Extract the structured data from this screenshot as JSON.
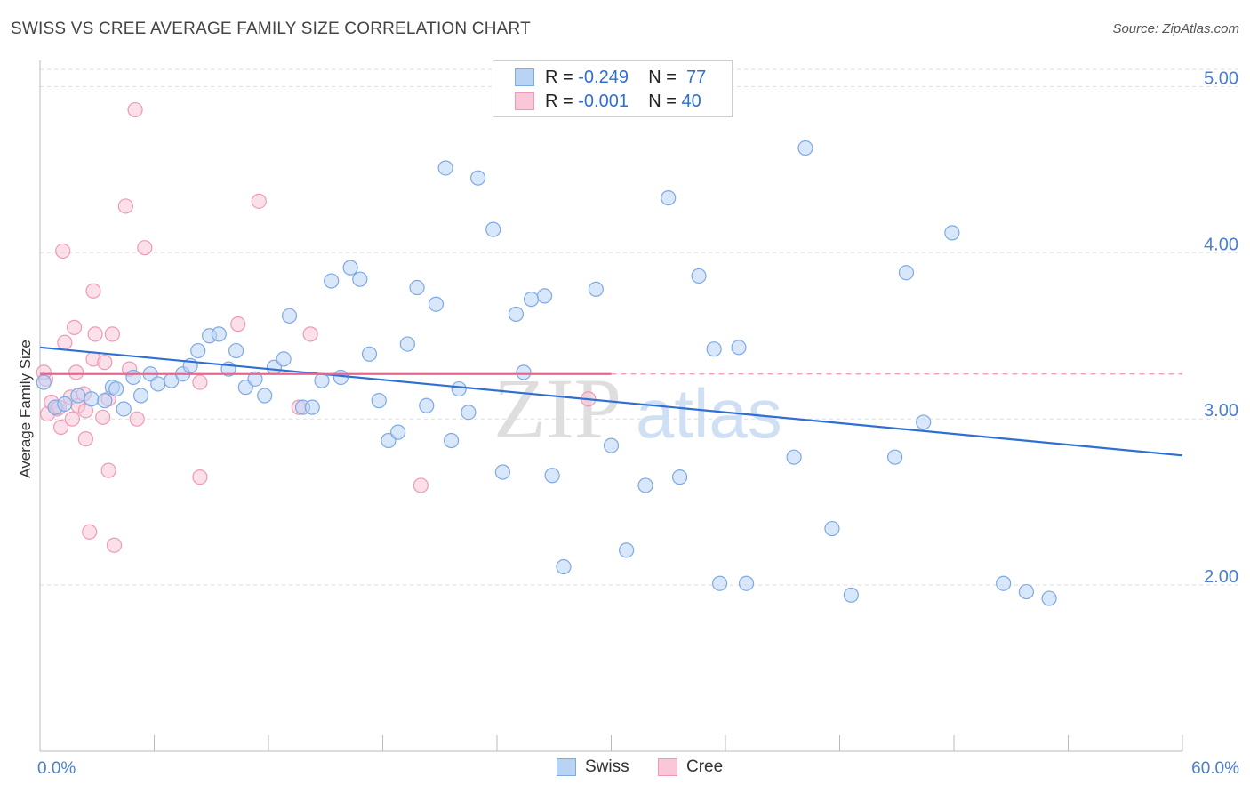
{
  "title": "SWISS VS CREE AVERAGE FAMILY SIZE CORRELATION CHART",
  "source": "Source: ZipAtlas.com",
  "legend": {
    "rows": [
      {
        "r_label": "R =",
        "r_value": "-0.249",
        "n_label": "N =",
        "n_value": "77"
      },
      {
        "r_label": "R =",
        "r_value": "-0.001",
        "n_label": "N =",
        "n_value": "40"
      }
    ]
  },
  "bottom_legend": {
    "swiss": "Swiss",
    "cree": "Cree"
  },
  "colors": {
    "swiss_fill": "#b9d3f5",
    "swiss_stroke": "#7ea9e4",
    "swiss_line": "#2f6fd4",
    "cree_fill": "#f9c7d7",
    "cree_stroke": "#ee9ab6",
    "cree_line": "#e8678f",
    "axis_text": "#4a7fd0",
    "grid": "#dddddd"
  },
  "chart_data": {
    "type": "scatter",
    "ylabel": "Average Family Size",
    "xlim": [
      0,
      60
    ],
    "ylim": [
      1.0,
      5.2
    ],
    "x_tick_labels": [
      "0.0%",
      "60.0%"
    ],
    "y_ticks": [
      2.0,
      3.0,
      4.0,
      5.0
    ],
    "y_tick_labels": [
      "2.00",
      "3.00",
      "4.00",
      "5.00"
    ],
    "grid": true,
    "legend_placement": "top-center",
    "series": [
      {
        "name": "Swiss",
        "trend": {
          "x": [
            0,
            60
          ],
          "y": [
            3.43,
            2.78
          ]
        },
        "points": [
          [
            0.2,
            3.22
          ],
          [
            0.8,
            3.07
          ],
          [
            1.3,
            3.09
          ],
          [
            2.0,
            3.14
          ],
          [
            2.7,
            3.12
          ],
          [
            3.4,
            3.11
          ],
          [
            3.8,
            3.19
          ],
          [
            4.4,
            3.06
          ],
          [
            4.9,
            3.25
          ],
          [
            5.3,
            3.14
          ],
          [
            5.8,
            3.27
          ],
          [
            6.2,
            3.21
          ],
          [
            6.9,
            3.23
          ],
          [
            7.5,
            3.27
          ],
          [
            7.9,
            3.32
          ],
          [
            8.3,
            3.41
          ],
          [
            8.9,
            3.5
          ],
          [
            9.4,
            3.51
          ],
          [
            9.9,
            3.3
          ],
          [
            10.3,
            3.41
          ],
          [
            10.8,
            3.19
          ],
          [
            11.3,
            3.24
          ],
          [
            11.8,
            3.14
          ],
          [
            12.3,
            3.31
          ],
          [
            12.8,
            3.36
          ],
          [
            13.1,
            3.62
          ],
          [
            13.8,
            3.07
          ],
          [
            14.3,
            3.07
          ],
          [
            14.8,
            3.23
          ],
          [
            15.3,
            3.83
          ],
          [
            15.8,
            3.25
          ],
          [
            16.3,
            3.91
          ],
          [
            16.8,
            3.84
          ],
          [
            17.3,
            3.39
          ],
          [
            17.8,
            3.11
          ],
          [
            18.3,
            2.87
          ],
          [
            18.8,
            2.92
          ],
          [
            19.3,
            3.45
          ],
          [
            19.8,
            3.79
          ],
          [
            20.3,
            3.08
          ],
          [
            20.8,
            3.69
          ],
          [
            21.3,
            4.51
          ],
          [
            21.6,
            2.87
          ],
          [
            22.0,
            3.18
          ],
          [
            22.5,
            3.04
          ],
          [
            23.0,
            4.45
          ],
          [
            23.8,
            4.14
          ],
          [
            24.3,
            2.68
          ],
          [
            25.0,
            3.63
          ],
          [
            25.4,
            3.28
          ],
          [
            25.8,
            3.72
          ],
          [
            26.5,
            3.74
          ],
          [
            26.9,
            2.66
          ],
          [
            27.5,
            2.11
          ],
          [
            29.2,
            3.78
          ],
          [
            30.0,
            2.84
          ],
          [
            30.8,
            2.21
          ],
          [
            31.8,
            2.6
          ],
          [
            33.0,
            4.33
          ],
          [
            33.6,
            2.65
          ],
          [
            34.6,
            3.86
          ],
          [
            35.4,
            3.42
          ],
          [
            35.7,
            2.01
          ],
          [
            36.7,
            3.43
          ],
          [
            37.1,
            2.01
          ],
          [
            39.6,
            2.77
          ],
          [
            40.2,
            4.63
          ],
          [
            41.6,
            2.34
          ],
          [
            42.6,
            1.94
          ],
          [
            44.9,
            2.77
          ],
          [
            45.5,
            3.88
          ],
          [
            46.4,
            2.98
          ],
          [
            47.9,
            4.12
          ],
          [
            50.6,
            2.01
          ],
          [
            51.8,
            1.96
          ],
          [
            53.0,
            1.92
          ],
          [
            4.0,
            3.18
          ]
        ]
      },
      {
        "name": "Cree",
        "trend": {
          "x": [
            0,
            30
          ],
          "y": [
            3.27,
            3.27
          ],
          "dashed_extension_to": 60
        },
        "points": [
          [
            0.3,
            3.24
          ],
          [
            0.4,
            3.03
          ],
          [
            0.6,
            3.1
          ],
          [
            0.9,
            3.06
          ],
          [
            1.1,
            2.95
          ],
          [
            1.2,
            4.01
          ],
          [
            1.3,
            3.46
          ],
          [
            1.6,
            3.13
          ],
          [
            1.7,
            3.0
          ],
          [
            1.8,
            3.55
          ],
          [
            1.9,
            3.28
          ],
          [
            2.0,
            3.08
          ],
          [
            2.3,
            3.15
          ],
          [
            2.4,
            3.05
          ],
          [
            2.4,
            2.88
          ],
          [
            2.6,
            2.32
          ],
          [
            2.8,
            3.36
          ],
          [
            2.8,
            3.77
          ],
          [
            2.9,
            3.51
          ],
          [
            3.3,
            3.01
          ],
          [
            3.4,
            3.34
          ],
          [
            3.6,
            3.12
          ],
          [
            3.6,
            2.69
          ],
          [
            3.8,
            3.51
          ],
          [
            3.9,
            2.24
          ],
          [
            4.5,
            4.28
          ],
          [
            4.7,
            3.3
          ],
          [
            5.0,
            4.86
          ],
          [
            5.1,
            3.0
          ],
          [
            5.5,
            4.03
          ],
          [
            8.4,
            3.22
          ],
          [
            8.4,
            2.65
          ],
          [
            10.4,
            3.57
          ],
          [
            11.5,
            4.31
          ],
          [
            13.6,
            3.07
          ],
          [
            14.2,
            3.51
          ],
          [
            20.0,
            2.6
          ],
          [
            28.8,
            3.12
          ],
          [
            0.2,
            3.28
          ],
          [
            1.0,
            3.07
          ]
        ]
      }
    ]
  }
}
